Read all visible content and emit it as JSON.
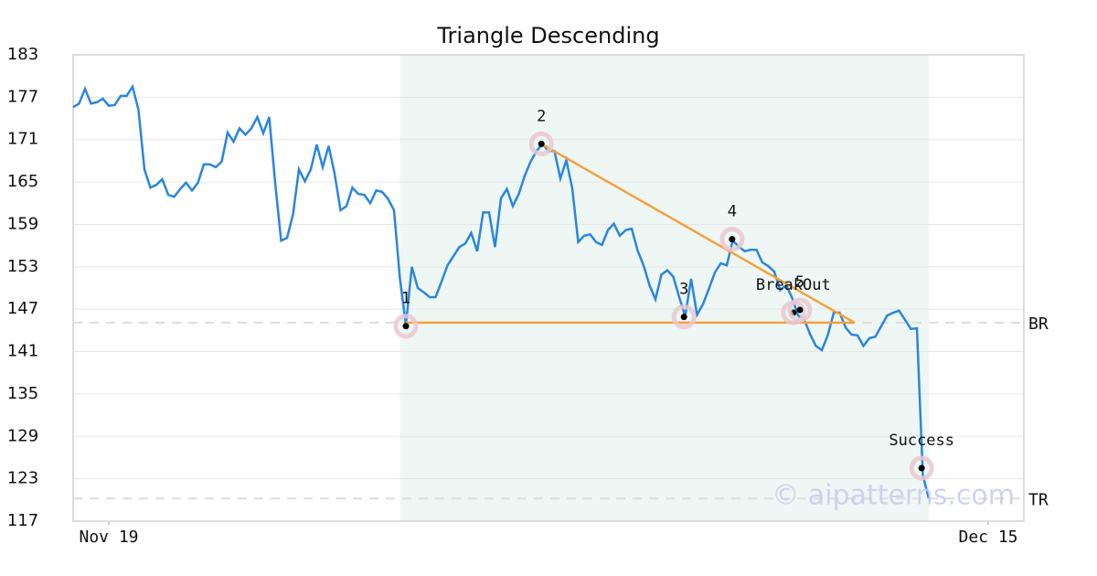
{
  "chart_data": {
    "type": "line",
    "title": "Triangle Descending",
    "color": "#2a85e0",
    "values": [
      175.6,
      176.1,
      178.2,
      176.1,
      176.3,
      176.8,
      175.8,
      175.9,
      177.2,
      177.2,
      178.5,
      175.2,
      166.8,
      164.2,
      164.6,
      165.4,
      163.2,
      162.9,
      164.0,
      164.9,
      163.8,
      164.9,
      167.5,
      167.5,
      167.1,
      167.9,
      172.0,
      170.7,
      172.6,
      171.7,
      172.6,
      174.2,
      171.9,
      174.2,
      164.9,
      156.7,
      157.1,
      160.4,
      166.8,
      165.1,
      166.8,
      170.3,
      167.1,
      170.1,
      166.2,
      161.0,
      161.6,
      164.2,
      163.3,
      163.2,
      162.0,
      163.8,
      163.6,
      162.6,
      161.0,
      151.3,
      144.8,
      153.0,
      150.0,
      149.4,
      148.7,
      148.7,
      150.9,
      153.2,
      154.5,
      155.8,
      156.3,
      157.8,
      155.2,
      160.7,
      160.7,
      155.8,
      162.7,
      164.0,
      161.6,
      163.3,
      165.9,
      167.9,
      169.4,
      170.4,
      169.4,
      169.4,
      165.5,
      168.1,
      164.1,
      156.5,
      157.4,
      157.6,
      156.5,
      156.1,
      158.2,
      159.1,
      157.4,
      158.2,
      158.4,
      155.3,
      153.2,
      150.4,
      148.4,
      151.9,
      152.5,
      151.6,
      148.7,
      146.0,
      151.3,
      146.2,
      147.7,
      149.9,
      152.2,
      153.5,
      153.2,
      156.7,
      155.9,
      155.2,
      155.4,
      155.4,
      153.6,
      153.1,
      152.3,
      149.7,
      150.4,
      148.6,
      146.1,
      145.6,
      143.5,
      141.8,
      141.2,
      143.3,
      146.5,
      146.5,
      144.4,
      143.4,
      143.3,
      141.8,
      142.9,
      143.1,
      144.6,
      146.1,
      146.5,
      146.8,
      145.5,
      144.2,
      144.3,
      123.5,
      120.2
    ],
    "xlim": [
      0,
      160
    ],
    "xticks": [
      {
        "value": 6,
        "label": "Nov 19"
      },
      {
        "value": 154,
        "label": "Dec 15"
      }
    ],
    "ylim": [
      117,
      183
    ],
    "yticks": [
      117,
      123,
      129,
      135,
      141,
      147,
      153,
      159,
      165,
      171,
      177,
      183
    ],
    "grid": true,
    "highlight_x": [
      55,
      144
    ],
    "highlight_color": "#eef7f3",
    "trendline_color": "#f5a040",
    "trendlines": [
      {
        "x": [
          56,
          131.5
        ],
        "y": [
          145.1,
          145.1
        ]
      },
      {
        "x": [
          78.8,
          131.5
        ],
        "y": [
          170.4,
          145.1
        ]
      }
    ],
    "reference_lines": [
      {
        "label": "BR",
        "value": 145.1
      },
      {
        "label": "TR",
        "value": 120.2
      }
    ],
    "markers": [
      {
        "label": "1",
        "x": 56,
        "y": 144.6
      },
      {
        "label": "2",
        "x": 78.8,
        "y": 170.4
      },
      {
        "label": "3",
        "x": 102.8,
        "y": 145.9
      },
      {
        "label": "4",
        "x": 110.9,
        "y": 156.9
      },
      {
        "label": "BreakOut",
        "x": 121.2,
        "y": 146.5
      },
      {
        "label": "5",
        "x": 122.3,
        "y": 146.9
      },
      {
        "label": "Success",
        "x": 142.8,
        "y": 124.5
      }
    ],
    "watermark": "© aipatterns.com"
  }
}
